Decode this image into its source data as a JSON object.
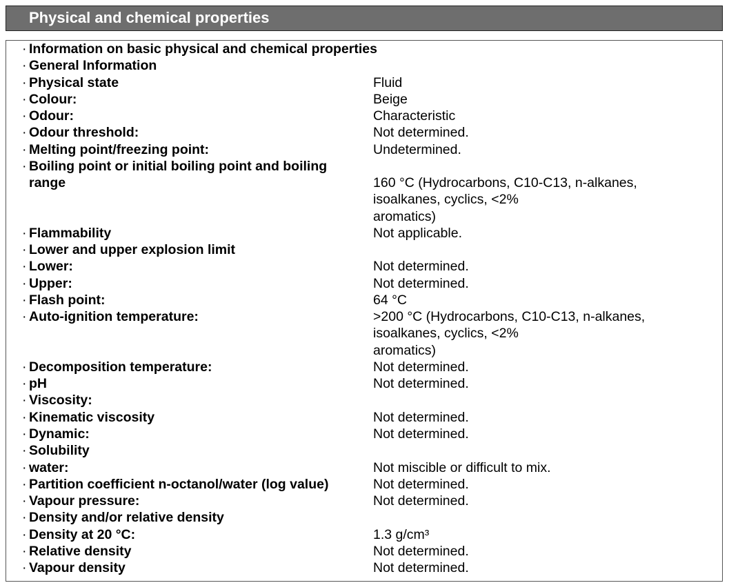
{
  "header": {
    "title": "Physical and chemical properties"
  },
  "rows": [
    {
      "label": [
        "Information on basic physical and chemical properties"
      ]
    },
    {
      "label": [
        "General Information"
      ]
    },
    {
      "label": [
        "Physical state"
      ],
      "value": [
        "Fluid"
      ]
    },
    {
      "label": [
        "Colour:"
      ],
      "value": [
        "Beige"
      ]
    },
    {
      "label": [
        "Odour:"
      ],
      "value": [
        "Characteristic"
      ]
    },
    {
      "label": [
        "Odour threshold:"
      ],
      "value": [
        "Not determined."
      ]
    },
    {
      "label": [
        "Melting point/freezing point:"
      ],
      "value": [
        "Undetermined."
      ]
    },
    {
      "label": [
        "Boiling point or initial boiling point and boiling",
        "range"
      ],
      "value": [
        "160 °C (Hydrocarbons, C10-C13, n-alkanes,",
        "isoalkanes, cyclics, <2%",
        "aromatics)"
      ]
    },
    {
      "label": [
        "Flammability"
      ],
      "value": [
        "Not applicable."
      ]
    },
    {
      "label": [
        "Lower and upper explosion limit"
      ]
    },
    {
      "label": [
        "Lower:"
      ],
      "value": [
        "Not determined."
      ]
    },
    {
      "label": [
        "Upper:"
      ],
      "value": [
        "Not determined."
      ]
    },
    {
      "label": [
        "Flash point:"
      ],
      "value": [
        "64 °C"
      ]
    },
    {
      "label": [
        "Auto-ignition temperature:"
      ],
      "value": [
        ">200 °C (Hydrocarbons, C10-C13, n-alkanes,",
        "isoalkanes, cyclics, <2%",
        "aromatics)"
      ]
    },
    {
      "label": [
        "Decomposition temperature:"
      ],
      "value": [
        "Not determined."
      ]
    },
    {
      "label": [
        "pH"
      ],
      "value": [
        "Not determined."
      ]
    },
    {
      "label": [
        "Viscosity:"
      ]
    },
    {
      "label": [
        "Kinematic viscosity"
      ],
      "value": [
        "Not determined."
      ]
    },
    {
      "label": [
        "Dynamic:"
      ],
      "value": [
        "Not determined."
      ]
    },
    {
      "label": [
        "Solubility"
      ]
    },
    {
      "label": [
        "water:"
      ],
      "value": [
        "Not miscible or difficult to mix."
      ]
    },
    {
      "label": [
        "Partition coefficient n-octanol/water (log value)"
      ],
      "value": [
        "Not determined."
      ]
    },
    {
      "label": [
        "Vapour pressure:"
      ],
      "value": [
        "Not determined."
      ]
    },
    {
      "label": [
        "Density and/or relative density"
      ]
    },
    {
      "label": [
        "Density at 20 °C:"
      ],
      "value": [
        "1.3 g/cm³"
      ]
    },
    {
      "label": [
        "Relative density"
      ],
      "value": [
        "Not determined."
      ]
    },
    {
      "label": [
        "Vapour density"
      ],
      "value": [
        "Not determined."
      ]
    }
  ]
}
